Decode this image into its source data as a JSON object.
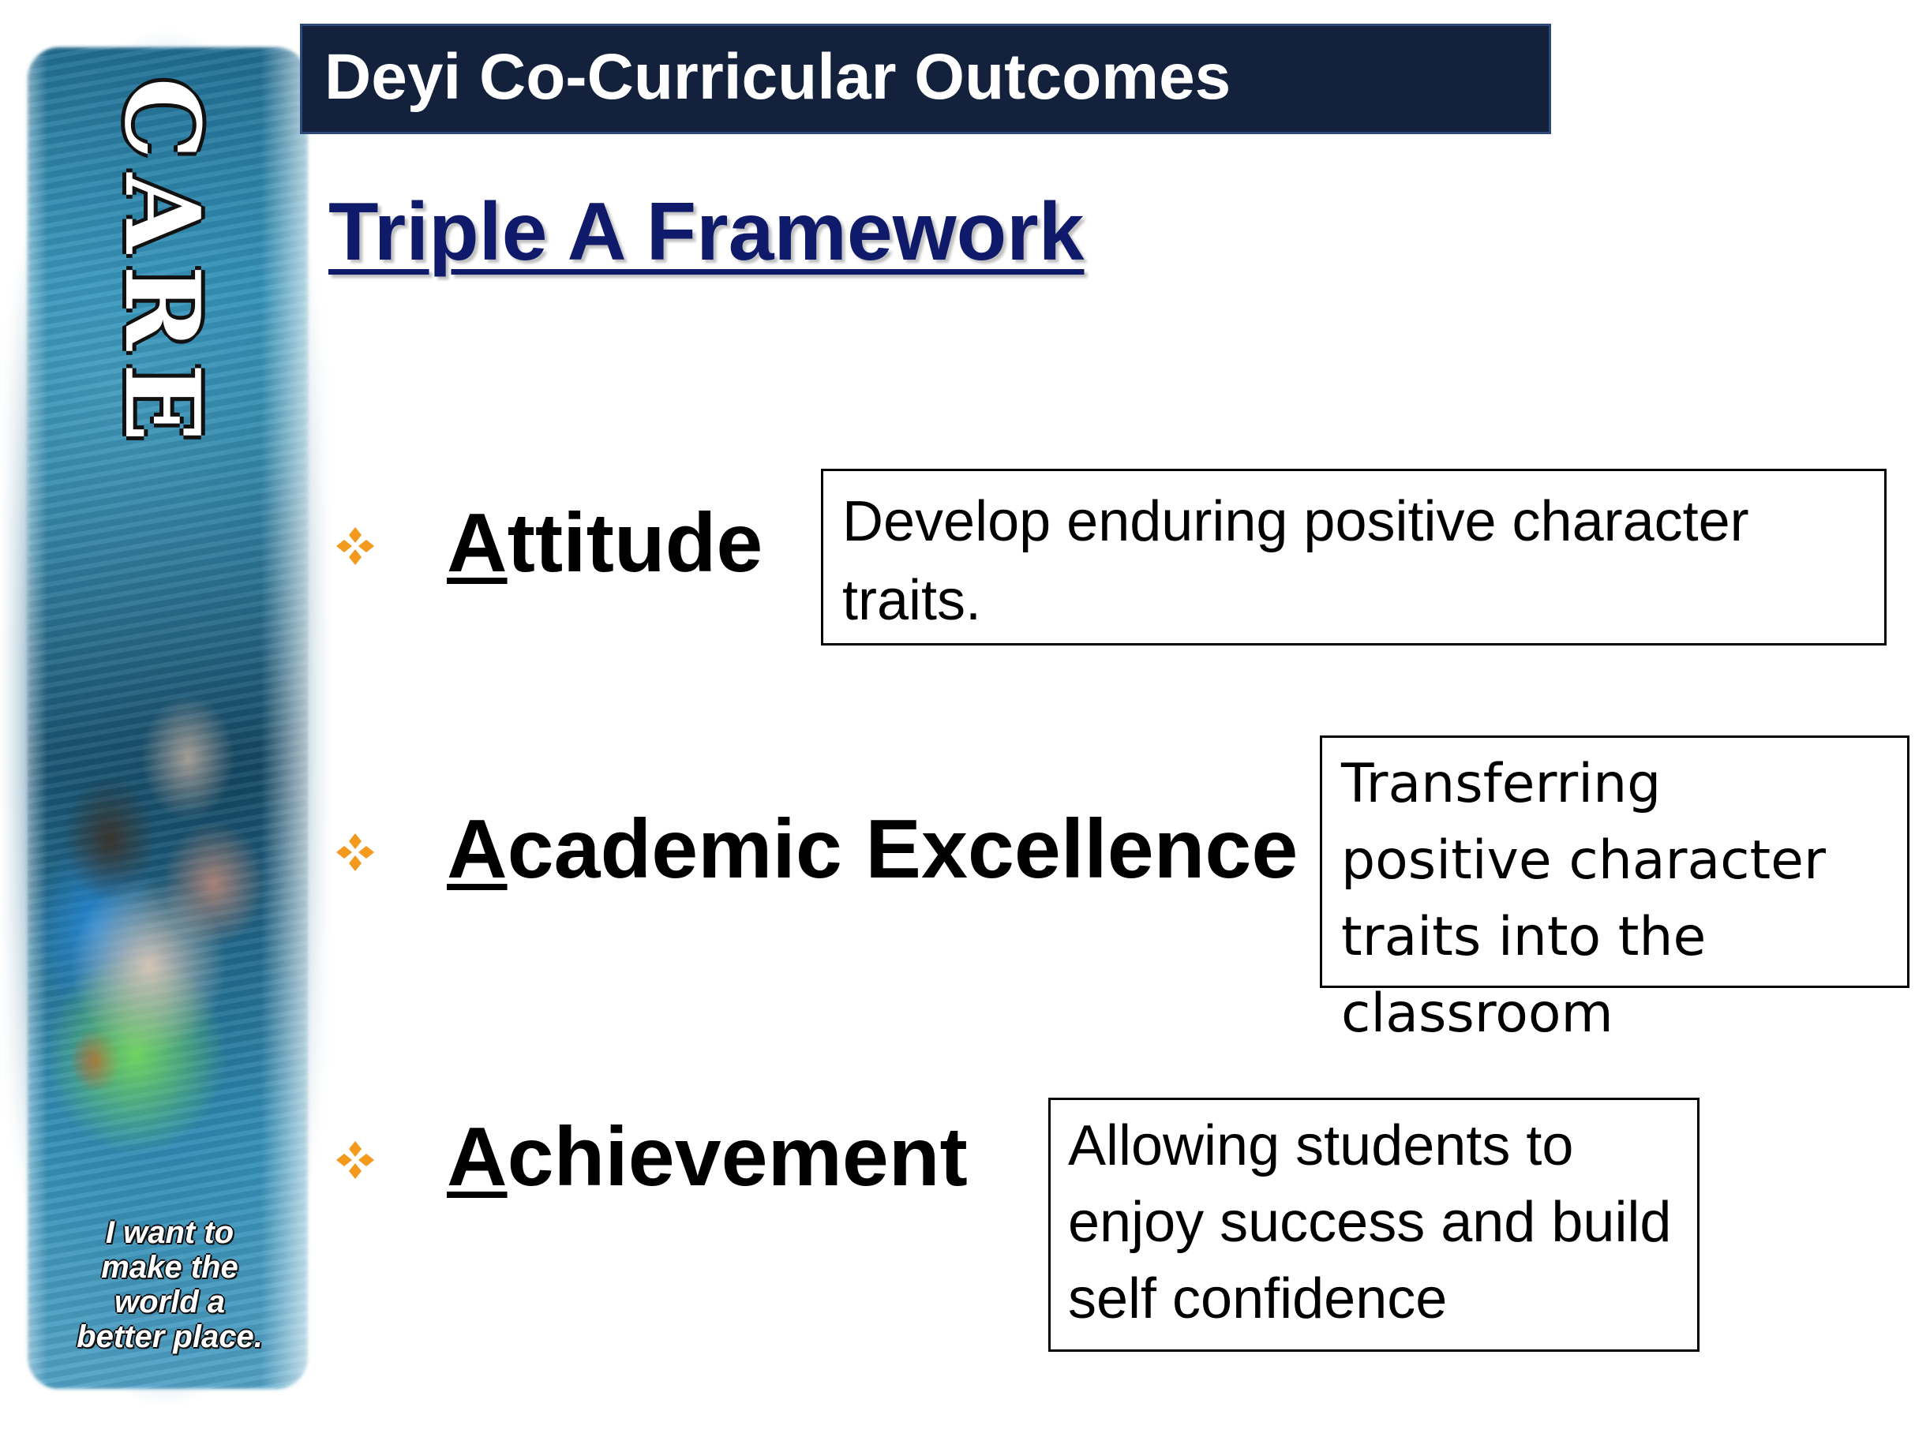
{
  "header": {
    "title": "Deyi Co-Curricular Outcomes"
  },
  "subtitle": "Triple A Framework",
  "banner": {
    "word": [
      "C",
      "A",
      "R",
      "E"
    ],
    "tagline": [
      "I want to",
      "make the",
      "world a",
      "better place."
    ]
  },
  "items": [
    {
      "first": "A",
      "rest": "ttitude",
      "description": "Develop enduring positive character traits."
    },
    {
      "first": "A",
      "rest": "cademic Excellence",
      "description": "Transferring positive character traits into the classroom"
    },
    {
      "first": "A",
      "rest": "chievement",
      "description": "Allowing students to enjoy success and build self confidence"
    }
  ],
  "colors": {
    "title_bar": "#14213d",
    "subtitle": "#0f1a6b",
    "bullet": "#f39a1e"
  },
  "icons": {
    "bullet": "four-diamond-bullet-icon"
  }
}
